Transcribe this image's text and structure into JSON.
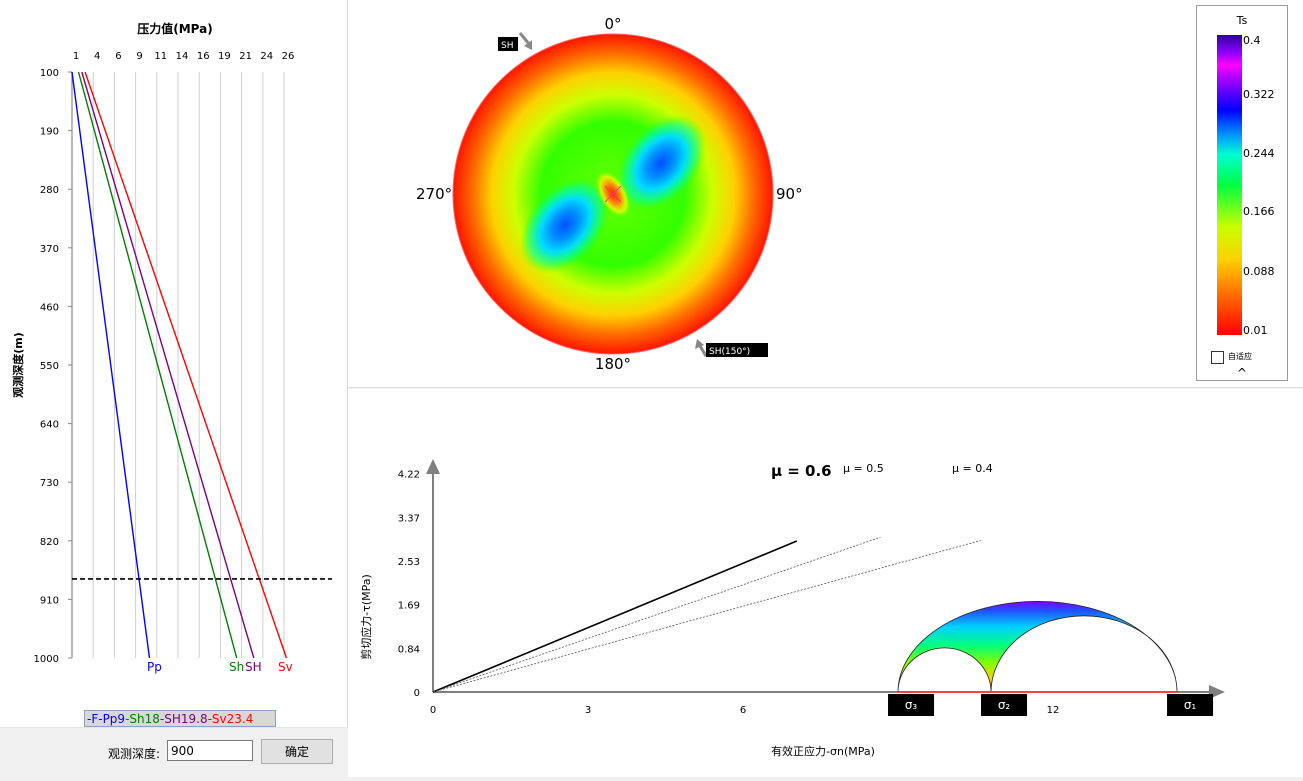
{
  "depth_chart": {
    "title": "压力值(MPa)",
    "ylabel": "观测深度(m)",
    "x_ticks": [
      "1",
      "4",
      "6",
      "9",
      "11",
      "14",
      "16",
      "19",
      "21",
      "24",
      "26"
    ],
    "y_ticks": [
      "100",
      "190",
      "280",
      "370",
      "460",
      "550",
      "640",
      "730",
      "820",
      "910",
      "1000"
    ],
    "line_labels": {
      "pp": "Pp",
      "sh": "Sh",
      "shmax": "SH",
      "sv": "Sv"
    },
    "colors": {
      "pp": "#0000ff",
      "sh": "#008000",
      "shmax": "#800080",
      "sv": "#ff0000",
      "f": "#0000ff"
    },
    "legend": {
      "f": "-F",
      "pp": "-Pp9",
      "sh": "-Sh18",
      "shmax": "-SH19.8",
      "sv": "-Sv23.4"
    }
  },
  "chart_data": [
    {
      "type": "line",
      "title": "压力值(MPa)",
      "ylabel": "观测深度(m)",
      "xlim": [
        0,
        26
      ],
      "ylim": [
        100,
        1000
      ],
      "grid": true,
      "series": [
        {
          "name": "Pp",
          "x": [
            0,
            9.5
          ],
          "y": [
            100,
            1000
          ]
        },
        {
          "name": "Sh",
          "x": [
            0.8,
            20.2
          ],
          "y": [
            100,
            1000
          ]
        },
        {
          "name": "SH",
          "x": [
            1.2,
            22.3
          ],
          "y": [
            100,
            1000
          ]
        },
        {
          "name": "Sv",
          "x": [
            1.6,
            26.3
          ],
          "y": [
            100,
            1000
          ]
        }
      ],
      "reference_line": {
        "y": 900,
        "style": "dashed"
      }
    }
  ],
  "polar": {
    "labels": {
      "top": "0°",
      "right": "90°",
      "bottom": "180°",
      "left": "270°"
    },
    "sh_label": "SH",
    "sh_label2": "SH(150°)",
    "sh_azimuth_deg": 150
  },
  "colorbar": {
    "title": "Ts",
    "ticks": [
      "0.4",
      "0.322",
      "0.244",
      "0.166",
      "0.088",
      "0.01"
    ],
    "checkbox_label": "自适应",
    "caret": "^"
  },
  "mohr": {
    "ylabel": "剪切应力-τ(MPa)",
    "xlabel": "有效正应力-σn(MPa)",
    "y_ticks": [
      "4.22",
      "3.37",
      "2.53",
      "1.69",
      "0.84",
      "0"
    ],
    "x_ticks": [
      "0",
      "3",
      "6",
      "12"
    ],
    "mu_labels": {
      "mu06": "μ = 0.6",
      "mu05": "μ = 0.5",
      "mu04": "μ = 0.4"
    },
    "sigma_labels": {
      "s3": "σ₃",
      "s2": "σ₂",
      "s1": "σ₁"
    },
    "friction_lines": [
      {
        "mu": 0.6,
        "x_end": 7.04
      },
      {
        "mu": 0.5,
        "x_end": 8.66
      },
      {
        "mu": 0.4,
        "x_end": 10.6
      }
    ],
    "sigma_values": {
      "s3": 9,
      "s2": 10.8,
      "s1": 14.4
    }
  },
  "controls": {
    "depth_label": "观测深度:",
    "depth_value": "900",
    "ok_button": "确定"
  }
}
